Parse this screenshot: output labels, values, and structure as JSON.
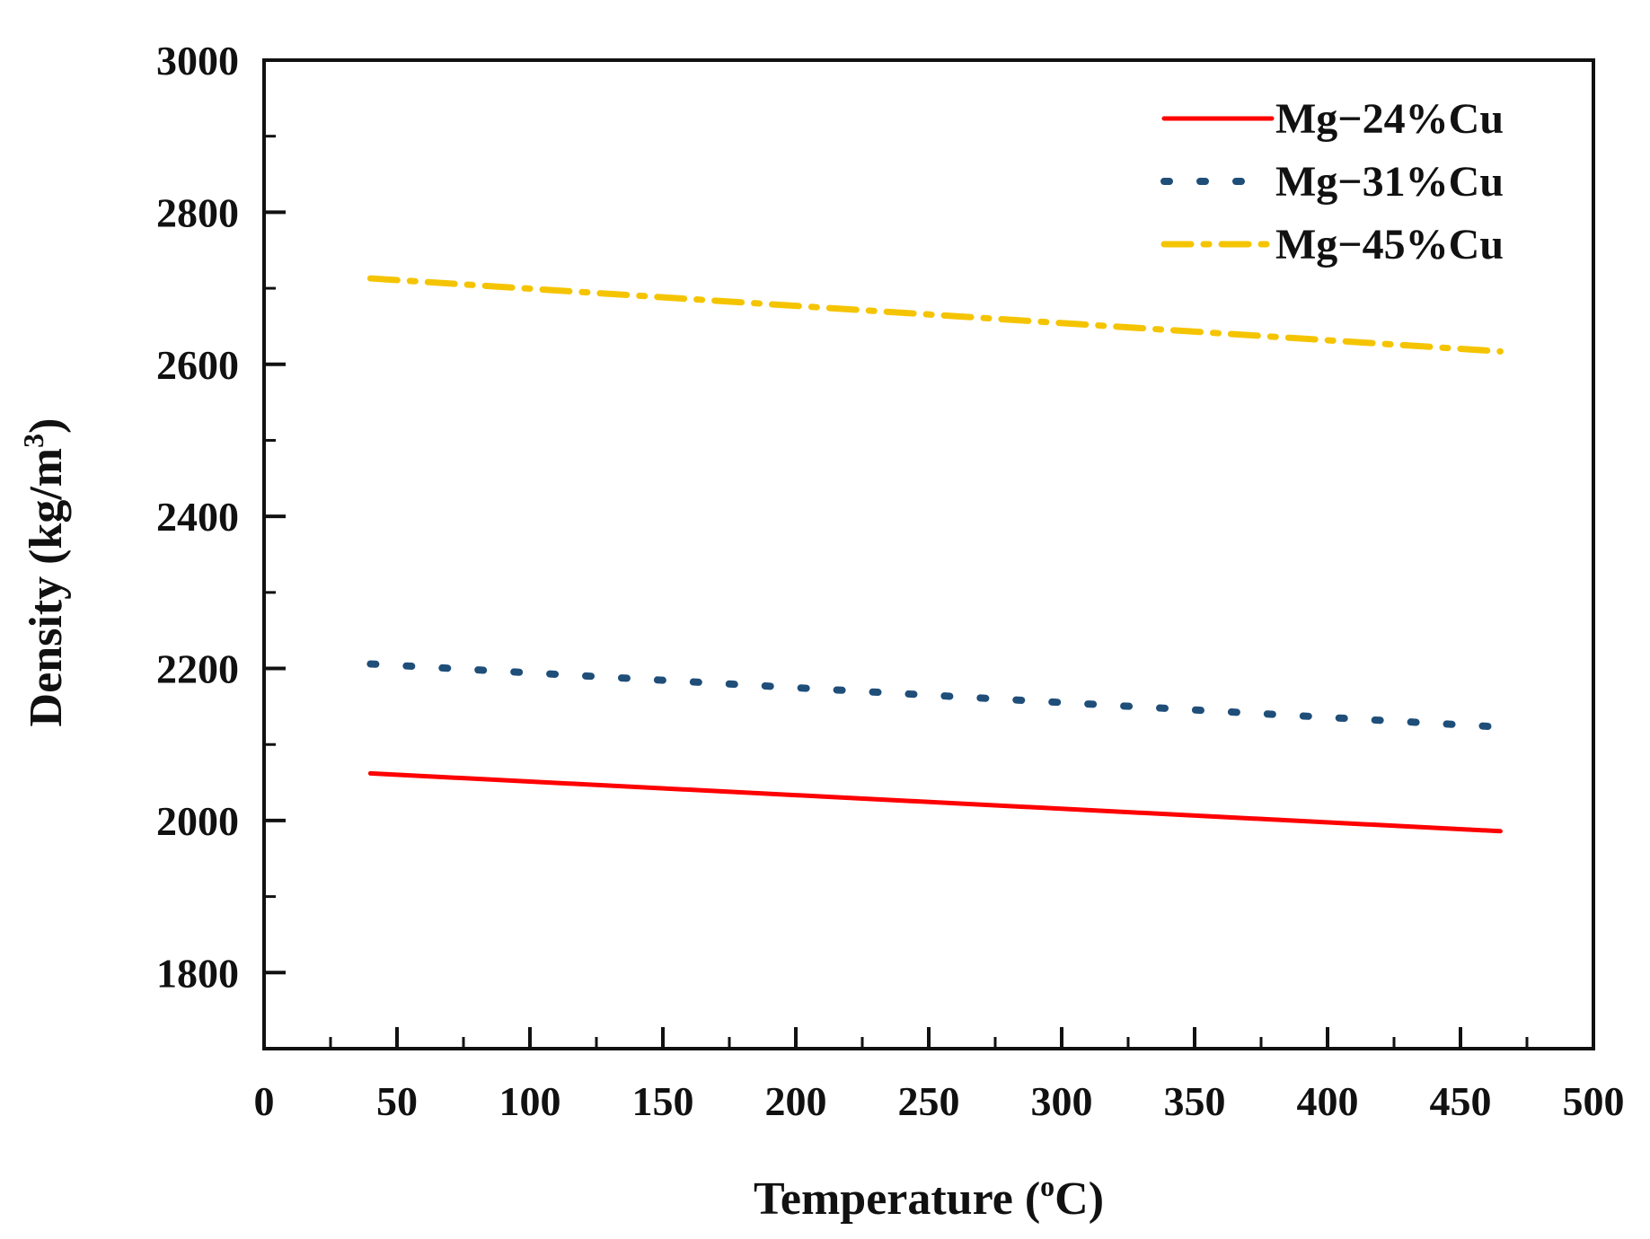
{
  "chart_data": {
    "type": "line",
    "title": "",
    "xlabel": {
      "main": "Temperature (",
      "sup": "o",
      "tail": "C)"
    },
    "ylabel": {
      "main": "Density (kg/m",
      "sup": "3",
      "tail": ")"
    },
    "xlim": [
      0,
      500
    ],
    "ylim": [
      1700,
      3000
    ],
    "xticks": [
      0,
      50,
      100,
      150,
      200,
      250,
      300,
      350,
      400,
      450,
      500
    ],
    "yticks": [
      1800,
      2000,
      2200,
      2400,
      2600,
      2800,
      3000
    ],
    "grid": false,
    "legend_position": "top-right",
    "series": [
      {
        "name": "Mg−24%Cu",
        "color": "#ff0000",
        "style": "solid",
        "x": [
          40,
          465
        ],
        "y": [
          2062,
          1986
        ]
      },
      {
        "name": "Mg−31%Cu",
        "color": "#1f4e79",
        "style": "dotted",
        "x": [
          40,
          465
        ],
        "y": [
          2206,
          2123
        ]
      },
      {
        "name": "Mg−45%Cu",
        "color": "#f5c400",
        "style": "dashdot",
        "x": [
          40,
          465
        ],
        "y": [
          2713,
          2617
        ]
      }
    ]
  }
}
